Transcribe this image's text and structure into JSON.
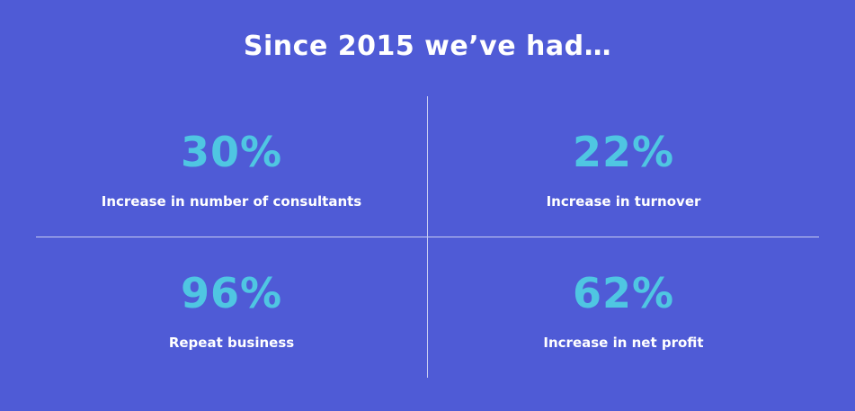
{
  "header": {
    "title": "Since 2015 we’ve had…"
  },
  "stats": [
    {
      "value": "30%",
      "label": "Increase in number of consultants"
    },
    {
      "value": "22%",
      "label": "Increase in turnover"
    },
    {
      "value": "96%",
      "label": "Repeat business"
    },
    {
      "value": "62%",
      "label": "Increase in net profit"
    }
  ]
}
